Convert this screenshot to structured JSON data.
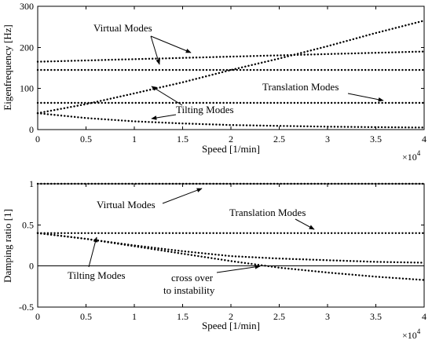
{
  "chart_data": [
    {
      "type": "line",
      "xlabel": "Speed [1/min]",
      "ylabel": "Eigenfrequency [Hz]",
      "x_multiplier": "×10",
      "x_multiplier_exp": "4",
      "xlim": [
        0,
        4
      ],
      "ylim": [
        0,
        300
      ],
      "xticks": [
        "0",
        "0.5",
        "1",
        "1.5",
        "2",
        "2.5",
        "3",
        "3.5",
        "4"
      ],
      "yticks": [
        "0",
        "100",
        "200",
        "300"
      ],
      "series": [
        {
          "x": [
            0,
            4
          ],
          "y": [
            165,
            190
          ]
        },
        {
          "x": [
            0,
            4
          ],
          "y": [
            145,
            145
          ]
        },
        {
          "x": [
            0,
            0.5,
            1,
            1.5,
            2,
            2.5,
            3,
            3.5,
            4
          ],
          "y": [
            40,
            62,
            88,
            115,
            145,
            173,
            203,
            235,
            265
          ]
        },
        {
          "x": [
            0,
            4
          ],
          "y": [
            65,
            65
          ]
        },
        {
          "x": [
            0,
            0.5,
            1,
            1.5,
            2,
            2.5,
            3,
            3.5,
            4
          ],
          "y": [
            40,
            28,
            20,
            15,
            11,
            9,
            7,
            6,
            5
          ]
        }
      ],
      "annotations": [
        {
          "text": "Virtual Modes"
        },
        {
          "text": "Translation Modes"
        },
        {
          "text": "Tilting Modes"
        }
      ]
    },
    {
      "type": "line",
      "xlabel": "Speed [1/min]",
      "ylabel": "Damping ratio [1]",
      "x_multiplier": "×10",
      "x_multiplier_exp": "4",
      "xlim": [
        0,
        4
      ],
      "ylim": [
        -0.5,
        1
      ],
      "xticks": [
        "0",
        "0.5",
        "1",
        "1.5",
        "2",
        "2.5",
        "3",
        "3.5",
        "4"
      ],
      "yticks": [
        "-0.5",
        "0",
        "0.5",
        "1"
      ],
      "series": [
        {
          "x": [
            0,
            4
          ],
          "y": [
            1.0,
            1.0
          ]
        },
        {
          "x": [
            0,
            4
          ],
          "y": [
            0.4,
            0.4
          ]
        },
        {
          "x": [
            0,
            0.5,
            1,
            1.5,
            2,
            2.5,
            3,
            3.5,
            4
          ],
          "y": [
            0.4,
            0.33,
            0.25,
            0.18,
            0.12,
            0.09,
            0.07,
            0.05,
            0.04
          ]
        },
        {
          "x": [
            0,
            0.5,
            1,
            1.5,
            2,
            2.5,
            3,
            3.5,
            4
          ],
          "y": [
            0.4,
            0.33,
            0.24,
            0.15,
            0.06,
            -0.02,
            -0.08,
            -0.13,
            -0.17
          ]
        }
      ],
      "annotations": [
        {
          "text": "Virtual Modes"
        },
        {
          "text": "Translation Modes"
        },
        {
          "text": "Tilting Modes"
        },
        {
          "text": "cross over"
        },
        {
          "text": "to instability"
        }
      ]
    }
  ]
}
